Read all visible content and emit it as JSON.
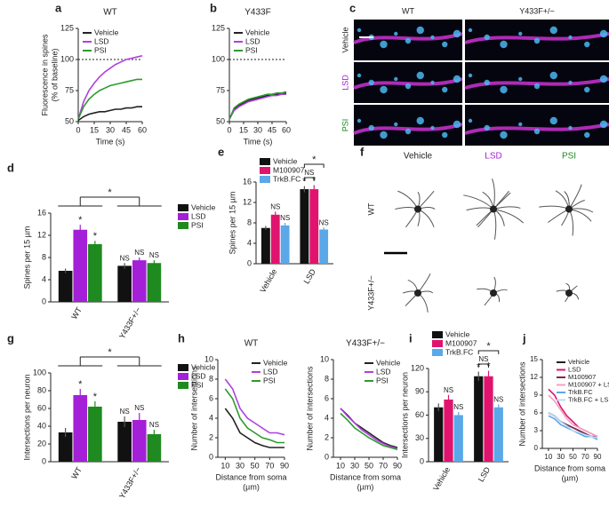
{
  "chart_data": [
    {
      "panel": "a",
      "type": "line",
      "title": "WT",
      "y_label": [
        "Fluorescence in spines",
        "(% of baseline)"
      ],
      "x_label": [
        "Time (s)"
      ],
      "x": [
        0,
        5,
        10,
        15,
        20,
        25,
        30,
        35,
        40,
        45,
        50,
        55,
        60
      ],
      "xlim": [
        0,
        60
      ],
      "xticks": [
        0,
        15,
        30,
        45,
        60
      ],
      "ylim": [
        50,
        125
      ],
      "yticks": [
        50,
        75,
        100,
        125
      ],
      "reference_line": 100,
      "series": [
        {
          "name": "Vehicle",
          "color": "#222222",
          "values": [
            51,
            54,
            56,
            57,
            58,
            58,
            59,
            60,
            60,
            61,
            61,
            62,
            62
          ]
        },
        {
          "name": "LSD",
          "color": "#b040e0",
          "values": [
            52,
            66,
            75,
            81,
            86,
            90,
            93,
            96,
            98,
            100,
            101,
            102,
            103
          ]
        },
        {
          "name": "PSI",
          "color": "#2e9a2e",
          "values": [
            52,
            62,
            68,
            72,
            75,
            77,
            79,
            80,
            81,
            82,
            83,
            84,
            84
          ]
        }
      ]
    },
    {
      "panel": "b",
      "type": "line",
      "title": "Y433F",
      "x_label": [
        "Time (s)"
      ],
      "x": [
        0,
        5,
        10,
        15,
        20,
        25,
        30,
        35,
        40,
        45,
        50,
        55,
        60
      ],
      "xlim": [
        0,
        60
      ],
      "xticks": [
        0,
        15,
        30,
        45,
        60
      ],
      "ylim": [
        50,
        125
      ],
      "yticks": [
        50,
        75,
        100,
        125
      ],
      "reference_line": 100,
      "series": [
        {
          "name": "Vehicle",
          "color": "#222222",
          "values": [
            52,
            60,
            63,
            65,
            67,
            68,
            69,
            70,
            71,
            71,
            72,
            72,
            73
          ]
        },
        {
          "name": "LSD",
          "color": "#b040e0",
          "values": [
            52,
            59,
            62,
            64,
            66,
            67,
            68,
            69,
            70,
            71,
            71,
            72,
            72
          ]
        },
        {
          "name": "PSI",
          "color": "#2e9a2e",
          "values": [
            52,
            61,
            64,
            66,
            68,
            69,
            70,
            71,
            72,
            72,
            73,
            73,
            74
          ]
        }
      ]
    },
    {
      "panel": "d",
      "type": "bar",
      "y_label": [
        "Spines per 15 µm"
      ],
      "categories": [
        "WT",
        "Y433F+/−"
      ],
      "ylim": [
        0,
        16
      ],
      "yticks": [
        0,
        4,
        8,
        12,
        16
      ],
      "annotations": [
        "*",
        "*",
        "*",
        "NS",
        "NS",
        "NS"
      ],
      "series": [
        {
          "name": "Vehicle",
          "color": "#111111",
          "values": [
            5.6,
            6.5
          ],
          "errors": [
            0.4,
            0.5
          ]
        },
        {
          "name": "LSD",
          "color": "#a41fd8",
          "values": [
            13,
            7.5
          ],
          "errors": [
            0.9,
            0.5
          ]
        },
        {
          "name": "PSI",
          "color": "#1f8a1f",
          "values": [
            10.4,
            7
          ],
          "errors": [
            0.6,
            0.5
          ]
        }
      ]
    },
    {
      "panel": "e",
      "type": "bar",
      "y_label": [
        "Spines per 15 µm"
      ],
      "categories": [
        "Vehicle",
        "LSD"
      ],
      "ylim": [
        0,
        16
      ],
      "yticks": [
        0,
        4,
        8,
        12,
        16
      ],
      "annotations": [
        "NS",
        "NS",
        "*",
        "*",
        "NS",
        "NS",
        "*"
      ],
      "series": [
        {
          "name": "Vehicle",
          "color": "#111111",
          "values": [
            7,
            14.6
          ],
          "errors": [
            0.4,
            0.6
          ]
        },
        {
          "name": "M100907",
          "color": "#e0146e",
          "values": [
            9.6,
            14.6
          ],
          "errors": [
            0.6,
            0.8
          ]
        },
        {
          "name": "TrkB.FC",
          "color": "#5aa8e8",
          "values": [
            7.5,
            6.7
          ],
          "errors": [
            0.5,
            0.4
          ]
        }
      ]
    },
    {
      "panel": "g",
      "type": "bar",
      "y_label": [
        "Intersections per neuron"
      ],
      "categories": [
        "WT",
        "Y433F+/−"
      ],
      "ylim": [
        0,
        100
      ],
      "yticks": [
        0,
        20,
        40,
        60,
        80,
        100
      ],
      "annotations": [
        "*",
        "*",
        "*",
        "NS",
        "NS",
        "NS"
      ],
      "series": [
        {
          "name": "Vehicle",
          "color": "#111111",
          "values": [
            33,
            45
          ],
          "errors": [
            5,
            6
          ]
        },
        {
          "name": "LSD",
          "color": "#a41fd8",
          "values": [
            75,
            47
          ],
          "errors": [
            7,
            8
          ]
        },
        {
          "name": "PSI",
          "color": "#1f8a1f",
          "values": [
            62,
            31
          ],
          "errors": [
            6,
            5
          ]
        }
      ]
    },
    {
      "panel": "h",
      "type": "line",
      "title": "WT",
      "y_label": [
        "Number of intersections"
      ],
      "x_label": [
        "Distance from soma",
        "(µm)"
      ],
      "x": [
        10,
        20,
        30,
        40,
        50,
        60,
        70,
        80,
        90
      ],
      "xlim": [
        0,
        90
      ],
      "xticks": [
        10,
        30,
        50,
        70,
        90
      ],
      "ylim": [
        0,
        10
      ],
      "yticks": [
        0,
        2,
        4,
        6,
        8,
        10
      ],
      "series": [
        {
          "name": "Vehicle",
          "color": "#222222",
          "values": [
            5,
            4,
            2.5,
            2,
            1.5,
            1.2,
            1,
            1,
            1
          ]
        },
        {
          "name": "LSD",
          "color": "#b040e0",
          "values": [
            8,
            7,
            5,
            4,
            3.5,
            3,
            2.5,
            2.5,
            2.3
          ]
        },
        {
          "name": "PSI",
          "color": "#2e9a2e",
          "values": [
            7,
            6,
            4,
            3,
            2.5,
            2,
            1.8,
            1.5,
            1.5
          ]
        }
      ]
    },
    {
      "type": "line",
      "title": "Y433F+/−",
      "y_label": [
        "Number of intersections"
      ],
      "x_label": [
        "Distance from soma",
        "(µm)"
      ],
      "x": [
        10,
        20,
        30,
        40,
        50,
        60,
        70,
        80,
        90
      ],
      "xlim": [
        0,
        90
      ],
      "xticks": [
        10,
        30,
        50,
        70,
        90
      ],
      "ylim": [
        0,
        10
      ],
      "yticks": [
        0,
        2,
        4,
        6,
        8,
        10
      ],
      "series": [
        {
          "name": "Vehicle",
          "color": "#222222",
          "values": [
            5,
            4.3,
            3.5,
            3,
            2.5,
            2,
            1.5,
            1.2,
            1
          ]
        },
        {
          "name": "LSD",
          "color": "#b040e0",
          "values": [
            5,
            4.2,
            3.5,
            2.8,
            2.3,
            1.8,
            1.4,
            1.1,
            0.9
          ]
        },
        {
          "name": "PSI",
          "color": "#2e9a2e",
          "values": [
            4.5,
            3.8,
            3,
            2.5,
            2,
            1.6,
            1.2,
            1,
            0.8
          ]
        }
      ]
    },
    {
      "panel": "i",
      "type": "bar",
      "y_label": [
        "Intersections per neuron"
      ],
      "categories": [
        "Vehicle",
        "LSD"
      ],
      "ylim": [
        0,
        120
      ],
      "yticks": [
        0,
        30,
        60,
        90,
        120
      ],
      "annotations": [
        "NS",
        "NS",
        "*",
        "*",
        "NS",
        "NS",
        "*"
      ],
      "series": [
        {
          "name": "Vehicle",
          "color": "#111111",
          "values": [
            70,
            110
          ],
          "errors": [
            5,
            6
          ]
        },
        {
          "name": "M100907",
          "color": "#e0146e",
          "values": [
            80,
            110
          ],
          "errors": [
            6,
            7
          ]
        },
        {
          "name": "TrkB.FC",
          "color": "#5aa8e8",
          "values": [
            60,
            70
          ],
          "errors": [
            4,
            4
          ]
        }
      ]
    },
    {
      "panel": "j",
      "type": "line",
      "y_label": [
        "Number of intersections"
      ],
      "x_label": [
        "Distance from soma",
        "(µm)"
      ],
      "x": [
        10,
        20,
        30,
        40,
        50,
        60,
        70,
        80,
        90
      ],
      "xlim": [
        0,
        90
      ],
      "xticks": [
        10,
        30,
        50,
        70,
        90
      ],
      "ylim": [
        0,
        15
      ],
      "yticks": [
        0,
        3,
        6,
        9,
        12,
        15
      ],
      "series": [
        {
          "name": "Vehicle",
          "color": "#222222",
          "values": [
            6,
            5.5,
            4.5,
            4,
            3.5,
            3,
            2.5,
            2,
            2
          ]
        },
        {
          "name": "LSD",
          "color": "#e0146e",
          "values": [
            10,
            9,
            7,
            5.5,
            4.5,
            3.5,
            3,
            2.5,
            2
          ]
        },
        {
          "name": "M100907",
          "color": "#7a2a4a",
          "values": [
            6,
            5.5,
            4.5,
            4,
            3.5,
            3,
            2.5,
            2,
            2
          ]
        },
        {
          "name": "M100907 + LSD",
          "color": "#f4a0c4",
          "values": [
            9,
            8,
            6.5,
            5,
            4,
            3.5,
            3,
            2.5,
            2
          ]
        },
        {
          "name": "TrkB.FC",
          "color": "#5aa8e8",
          "values": [
            5.5,
            5,
            4,
            3.5,
            3,
            2.5,
            2,
            2,
            1.5
          ]
        },
        {
          "name": "TrkB.FC + LSD",
          "color": "#b8dcf6",
          "values": [
            6,
            5.5,
            4.5,
            3.8,
            3,
            2.7,
            2.3,
            2,
            1.8
          ]
        }
      ]
    }
  ],
  "image_panels": [
    {
      "panel": "c",
      "columns": [
        "WT",
        "Y433F+/−"
      ],
      "rows": [
        "Vehicle",
        "LSD",
        "PSI"
      ]
    },
    {
      "panel": "f",
      "columns": [
        "Vehicle",
        "LSD",
        "PSI"
      ],
      "rows": [
        "WT",
        "Y433F+/−"
      ]
    }
  ]
}
